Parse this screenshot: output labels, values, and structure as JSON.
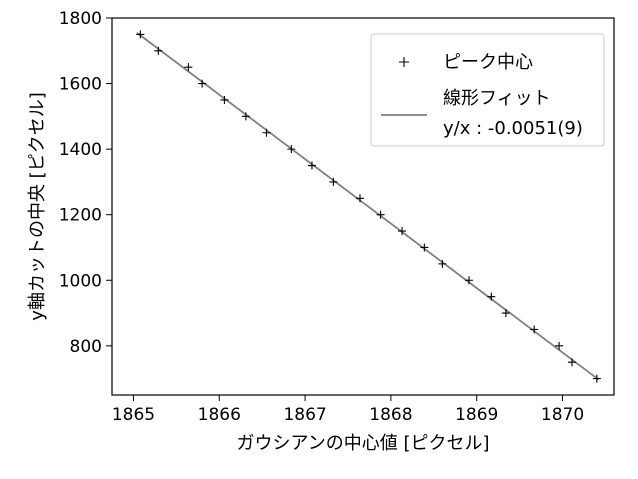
{
  "chart_data": {
    "type": "scatter",
    "xlabel": "ガウシアンの中心値 [ピクセル]",
    "ylabel": "y軸カットの中央 [ピクセル]",
    "xlim": [
      1864.75,
      1870.6
    ],
    "ylim": [
      650,
      1800
    ],
    "xticks": [
      "1865",
      "1866",
      "1867",
      "1868",
      "1869",
      "1870"
    ],
    "yticks": [
      "800",
      "1000",
      "1200",
      "1400",
      "1600",
      "1800"
    ],
    "grid": false,
    "legend_position": "top-right",
    "series": [
      {
        "name": "ピーク中心",
        "kind": "scatter",
        "marker": "plus",
        "color": "#000000",
        "x": [
          1865.08,
          1865.29,
          1865.64,
          1865.8,
          1866.06,
          1866.31,
          1866.55,
          1866.84,
          1867.08,
          1867.33,
          1867.64,
          1867.88,
          1868.13,
          1868.39,
          1868.6,
          1868.91,
          1869.17,
          1869.34,
          1869.67,
          1869.96,
          1870.11,
          1870.4
        ],
        "y": [
          1750,
          1700,
          1650,
          1600,
          1550,
          1500,
          1450,
          1400,
          1350,
          1300,
          1250,
          1200,
          1150,
          1100,
          1050,
          1000,
          950,
          900,
          850,
          800,
          750,
          700
        ]
      },
      {
        "name": "線形フィット",
        "kind": "line",
        "color": "#808080",
        "x": [
          1865.04,
          1870.42
        ],
        "y": [
          1755,
          697
        ]
      }
    ],
    "legend_entries": [
      {
        "label": "ピーク中心"
      },
      {
        "label": "線形フィット",
        "label2": "y/x : -0.0051(9)"
      }
    ]
  }
}
